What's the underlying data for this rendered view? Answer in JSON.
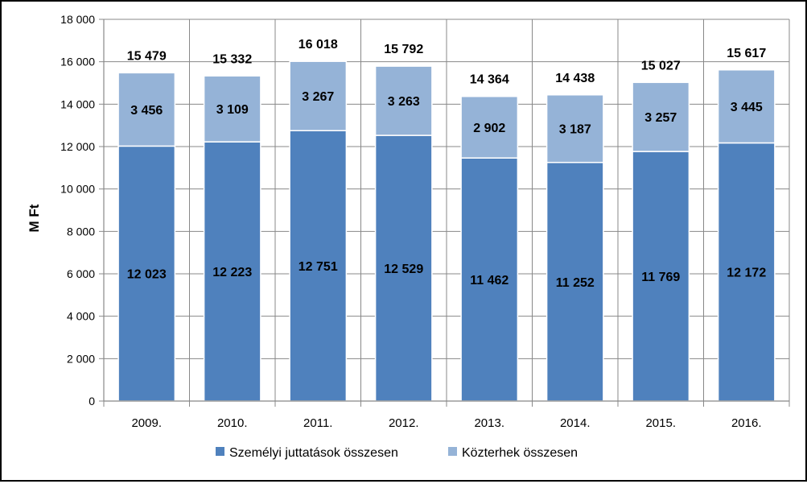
{
  "chart_data": {
    "type": "bar",
    "stacked": true,
    "ylabel": "M Ft",
    "ylim": [
      0,
      18000
    ],
    "ytick_step": 2000,
    "yticks": [
      "0",
      "2 000",
      "4 000",
      "6 000",
      "8 000",
      "10 000",
      "12 000",
      "14 000",
      "16 000",
      "18 000"
    ],
    "categories": [
      "2009.",
      "2010.",
      "2011.",
      "2012.",
      "2013.",
      "2014.",
      "2015.",
      "2016."
    ],
    "series": [
      {
        "name": "Személyi juttatások összesen",
        "color": "#4f81bd",
        "values": [
          12023,
          12223,
          12751,
          12529,
          11462,
          11252,
          11769,
          12172
        ],
        "labels": [
          "12 023",
          "12 223",
          "12 751",
          "12 529",
          "11 462",
          "11 252",
          "11 769",
          "12 172"
        ]
      },
      {
        "name": "Közterhek összesen",
        "color": "#95b3d7",
        "values": [
          3456,
          3109,
          3267,
          3263,
          2902,
          3187,
          3257,
          3445
        ],
        "labels": [
          "3 456",
          "3 109",
          "3 267",
          "3 263",
          "2 902",
          "3 187",
          "3 257",
          "3 445"
        ]
      }
    ],
    "totals": [
      15479,
      15332,
      16018,
      15792,
      14364,
      14438,
      15027,
      15617
    ],
    "total_labels": [
      "15 479",
      "15 332",
      "16 018",
      "15 792",
      "14 364",
      "14 438",
      "15 027",
      "15 617"
    ],
    "grid": true,
    "legend": "bottom"
  }
}
